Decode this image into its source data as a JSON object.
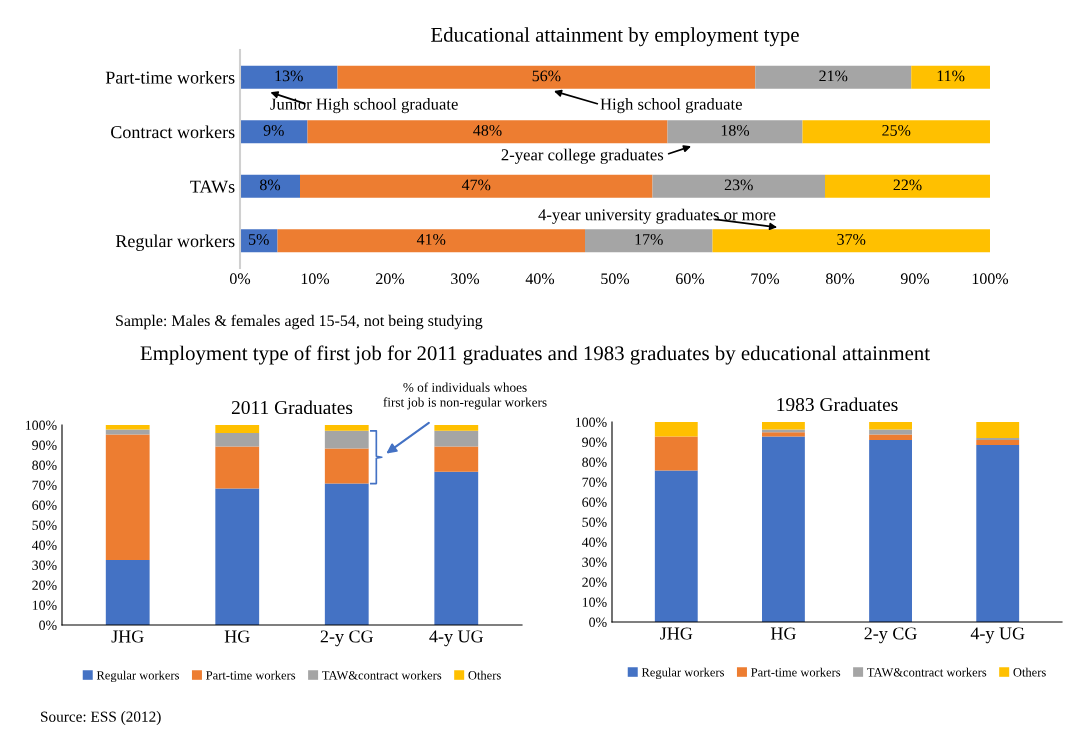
{
  "chart_data": [
    {
      "type": "bar",
      "orientation": "horizontal",
      "stacked": true,
      "title": "Educational attainment by employment type",
      "categories": [
        "Part-time workers",
        "Contract workers",
        "TAWs",
        "Regular workers"
      ],
      "series": [
        {
          "name": "Junior High school graduate",
          "color": "#4472c4",
          "values": [
            13,
            9,
            8,
            5
          ],
          "value_labels": [
            "13%",
            "9%",
            "8%",
            "5%"
          ]
        },
        {
          "name": "High school graduate",
          "color": "#ed7d31",
          "values": [
            55.7,
            48,
            47,
            41
          ],
          "value_labels": [
            "56%",
            "48%",
            "47%",
            "41%"
          ]
        },
        {
          "name": "2-year college graduates",
          "color": "#a5a5a5",
          "values": [
            20.8,
            18,
            23,
            17
          ],
          "value_labels": [
            "21%",
            "18%",
            "23%",
            "17%"
          ]
        },
        {
          "name": "4-year university graduates or more",
          "color": "#ffc000",
          "values": [
            10.5,
            25,
            22,
            37
          ],
          "value_labels": [
            "11%",
            "25%",
            "22%",
            "37%"
          ]
        }
      ],
      "xlim": [
        0,
        100
      ],
      "xticks": [
        {
          "value": 0,
          "label": "0%"
        },
        {
          "value": 10,
          "label": "10%"
        },
        {
          "value": 20,
          "label": "20%"
        },
        {
          "value": 30,
          "label": "30%"
        },
        {
          "value": 40,
          "label": "40%"
        },
        {
          "value": 50,
          "label": "50%"
        },
        {
          "value": 60,
          "label": "60%"
        },
        {
          "value": 70,
          "label": "70%"
        },
        {
          "value": 80,
          "label": "80%"
        },
        {
          "value": 90,
          "label": "90%"
        },
        {
          "value": 100,
          "label": "100%"
        }
      ],
      "annotations": [
        "Sample: Males & females aged 15-54, not being studying"
      ]
    },
    {
      "type": "bar",
      "stacked": true,
      "title": "2011 Graduates",
      "legend": "bottom",
      "categories": [
        "JHG",
        "HG",
        "2-y CG",
        "4-y UG"
      ],
      "series": [
        {
          "name": "Regular workers",
          "color": "#4472c4",
          "values": [
            32.5,
            68.2,
            70.7,
            76.6
          ]
        },
        {
          "name": "Part-time workers",
          "color": "#ed7d31",
          "values": [
            62.7,
            21.1,
            17.6,
            12.7
          ]
        },
        {
          "name": "TAW&contract workers",
          "color": "#a5a5a5",
          "values": [
            2.6,
            6.7,
            8.8,
            7.8
          ]
        },
        {
          "name": "Others",
          "color": "#ffc000",
          "values": [
            2.2,
            4.0,
            2.9,
            2.9
          ]
        }
      ],
      "ylim": [
        0,
        100
      ],
      "yticks": [
        {
          "value": 0,
          "label": "0%"
        },
        {
          "value": 10,
          "label": "10%"
        },
        {
          "value": 20,
          "label": "20%"
        },
        {
          "value": 30,
          "label": "30%"
        },
        {
          "value": 40,
          "label": "40%"
        },
        {
          "value": 50,
          "label": "50%"
        },
        {
          "value": 60,
          "label": "60%"
        },
        {
          "value": 70,
          "label": "70%"
        },
        {
          "value": 80,
          "label": "80%"
        },
        {
          "value": 90,
          "label": "90%"
        },
        {
          "value": 100,
          "label": "100%"
        }
      ],
      "annotations": [
        "Employment type of first job for 2011 graduates and 1983 graduates by educational attainment",
        "% of individuals whoes\nfirst job is non-regular workers",
        "Source: ESS (2012)"
      ]
    },
    {
      "type": "bar",
      "stacked": true,
      "title": "1983 Graduates",
      "legend": "bottom",
      "categories": [
        "JHG",
        "HG",
        "2-y CG",
        "4-y UG"
      ],
      "series": [
        {
          "name": "Regular workers",
          "color": "#4472c4",
          "values": [
            75.8,
            92.7,
            91.0,
            88.5
          ]
        },
        {
          "name": "Part-time workers",
          "color": "#ed7d31",
          "values": [
            16.9,
            2.2,
            2.7,
            2.5
          ]
        },
        {
          "name": "TAW&contract workers",
          "color": "#a5a5a5",
          "values": [
            0,
            1.4,
            2.6,
            1.0
          ]
        },
        {
          "name": "Others",
          "color": "#ffc000",
          "values": [
            7.3,
            3.7,
            3.7,
            8.0
          ]
        }
      ],
      "ylim": [
        0,
        100
      ],
      "yticks": [
        {
          "value": 0,
          "label": "0%"
        },
        {
          "value": 10,
          "label": "10%"
        },
        {
          "value": 20,
          "label": "20%"
        },
        {
          "value": 30,
          "label": "30%"
        },
        {
          "value": 40,
          "label": "40%"
        },
        {
          "value": 50,
          "label": "50%"
        },
        {
          "value": 60,
          "label": "60%"
        },
        {
          "value": 70,
          "label": "70%"
        },
        {
          "value": 80,
          "label": "80%"
        },
        {
          "value": 90,
          "label": "90%"
        },
        {
          "value": 100,
          "label": "100%"
        }
      ]
    }
  ]
}
